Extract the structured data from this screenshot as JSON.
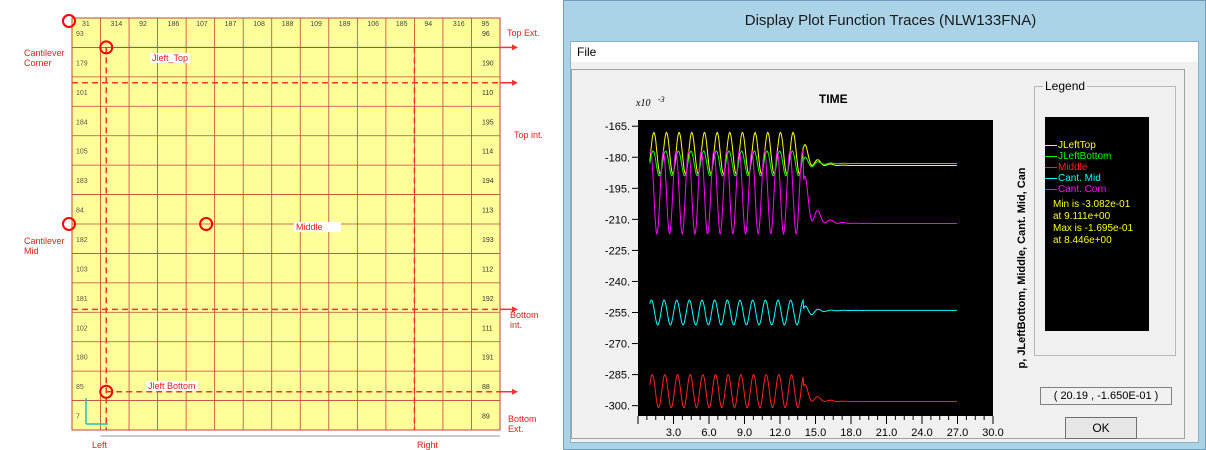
{
  "model_view": {
    "top_numbers": [
      "31",
      "314",
      "92",
      "186",
      "107",
      "187",
      "108",
      "188",
      "109",
      "189",
      "106",
      "185",
      "94",
      "316",
      "95"
    ],
    "right_numbers": [
      "96",
      "190",
      "110",
      "195",
      "114",
      "194",
      "113",
      "193",
      "112",
      "192",
      "111",
      "191",
      "88",
      "89"
    ],
    "left_numbers": [
      "93",
      "179",
      "101",
      "184",
      "105",
      "183",
      "84",
      "182",
      "103",
      "181",
      "102",
      "180",
      "85",
      "7"
    ],
    "labels": {
      "top_ext": "Top Ext.",
      "cantilever_corner": "Cantilever\nCorner",
      "top_int": "Top int.",
      "cantilever_mid": "Cantilever\nMid",
      "bottom_int": "Bottom\nint.",
      "bottom_ext": "Bottom\nExt.",
      "left": "Left",
      "right": "Right",
      "jleft_top": "Jleft_Top",
      "middle": "Middle",
      "jleft_bottom": "Jleft Bottom"
    },
    "colors": {
      "grid_fill": "#ffff99",
      "grid_line": "#c04040",
      "marker": "#ff0000",
      "dashed": "#ff3030"
    }
  },
  "dialog": {
    "title": "Display Plot Function Traces  (NLW133FNA)",
    "menu": [
      "File"
    ],
    "plot": {
      "title": "TIME",
      "y_multiplier": "x10",
      "y_exponent": "-3",
      "y_axis_label": "p, JLeftBottom, Middle, Cant. Mid, Can",
      "y_ticks": [
        "-165.",
        "-180.",
        "-195.",
        "-210.",
        "-225.",
        "-240.",
        "-255.",
        "-270.",
        "-285.",
        "-300."
      ],
      "x_ticks": [
        "3.0",
        "6.0",
        "9.0",
        "12.0",
        "15.0",
        "18.0",
        "21.0",
        "24.0",
        "27.0",
        "30.0"
      ]
    },
    "legend": {
      "title": "Legend",
      "items": [
        {
          "label": "JLeftTop",
          "color": "#ffff00"
        },
        {
          "label": "JLeftBottom",
          "color": "#00ff00"
        },
        {
          "label": "Middle",
          "color": "#ff2020"
        },
        {
          "label": "Cant. Mid",
          "color": "#00ffff"
        },
        {
          "label": "Cant. Corn",
          "color": "#ff00ff"
        }
      ],
      "min_text": "Min is -3.082e-01",
      "min_at": "at 9.111e+00",
      "max_text": "Max is -1.695e-01",
      "max_at": "at 8.446e+00"
    },
    "coordinate_readout": "( 20.19 , -1.650E-01 )",
    "ok_label": "OK"
  },
  "chart_data": {
    "type": "line",
    "title": "TIME",
    "xlabel": "",
    "ylabel": "p, JLeftBottom, Middle, Cant. Mid, Can",
    "xlim": [
      0,
      30
    ],
    "ylim": [
      -305,
      -162
    ],
    "y_scale_note": "x10 -3",
    "grid": false,
    "legend_placement": "right",
    "series": [
      {
        "name": "JLeftTop",
        "color": "#ffff00",
        "osc_center": -178,
        "osc_amp": 10,
        "steady": -184,
        "t_end": 27
      },
      {
        "name": "JLeftBottom",
        "color": "#00ff00",
        "osc_center": -183,
        "osc_amp": 6,
        "steady": -183,
        "t_end": 27
      },
      {
        "name": "Middle",
        "color": "#ff2020",
        "osc_center": -293,
        "osc_amp": 8,
        "steady": -298,
        "t_end": 27
      },
      {
        "name": "Cant. Mid",
        "color": "#00ffff",
        "osc_center": -255,
        "osc_amp": 6,
        "steady": -254,
        "t_end": 27
      },
      {
        "name": "Cant. Corn",
        "color": "#ff00ff",
        "osc_center": -197,
        "osc_amp": 20,
        "steady": -212,
        "t_end": 27
      }
    ],
    "x_ticks": [
      3,
      6,
      9,
      12,
      15,
      18,
      21,
      24,
      27,
      30
    ],
    "y_ticks": [
      -165,
      -180,
      -195,
      -210,
      -225,
      -240,
      -255,
      -270,
      -285,
      -300
    ]
  }
}
